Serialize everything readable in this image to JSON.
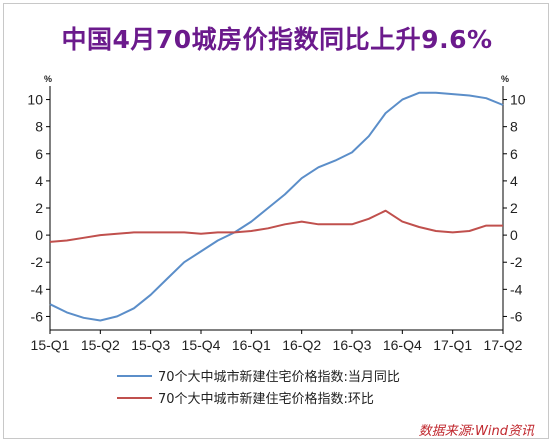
{
  "title": "中国4月70城房价指数同比上升9.6%",
  "source": "数据来源:Wind资讯",
  "chart_data": {
    "type": "line",
    "title": "中国4月70城房价指数同比上升9.6%",
    "x_labels": [
      "15-Q1",
      "15-Q2",
      "15-Q3",
      "15-Q4",
      "16-Q1",
      "16-Q2",
      "16-Q3",
      "16-Q4",
      "17-Q1",
      "17-Q2"
    ],
    "x": [
      0,
      1,
      2,
      3,
      4,
      5,
      6,
      7,
      8,
      9,
      10,
      11,
      12,
      13,
      14,
      15,
      16,
      17,
      18,
      19,
      20,
      21,
      22,
      23,
      24,
      25,
      26,
      27
    ],
    "ylim": [
      -7,
      11
    ],
    "yticks": [
      -6,
      -4,
      -2,
      0,
      2,
      4,
      6,
      8,
      10
    ],
    "y_unit_left": "%",
    "y_unit_right": "%",
    "series": [
      {
        "name": "70个大中城市新建住宅价格指数:当月同比",
        "color": "#5b8ec9",
        "values": [
          -5.1,
          -5.7,
          -6.1,
          -6.3,
          -6.0,
          -5.4,
          -4.4,
          -3.2,
          -2.0,
          -1.2,
          -0.4,
          0.2,
          1.0,
          2.0,
          3.0,
          4.2,
          5.0,
          5.5,
          6.1,
          7.3,
          9.0,
          10.0,
          10.5,
          10.5,
          10.4,
          10.3,
          10.1,
          9.6
        ]
      },
      {
        "name": "70个大中城市新建住宅价格指数:环比",
        "color": "#c0504d",
        "values": [
          -0.5,
          -0.4,
          -0.2,
          0.0,
          0.1,
          0.2,
          0.2,
          0.2,
          0.2,
          0.1,
          0.2,
          0.2,
          0.3,
          0.5,
          0.8,
          1.0,
          0.8,
          0.8,
          0.8,
          1.2,
          1.8,
          1.0,
          0.6,
          0.3,
          0.2,
          0.3,
          0.7,
          0.7
        ]
      }
    ],
    "grid": false,
    "legend_position": "bottom"
  }
}
